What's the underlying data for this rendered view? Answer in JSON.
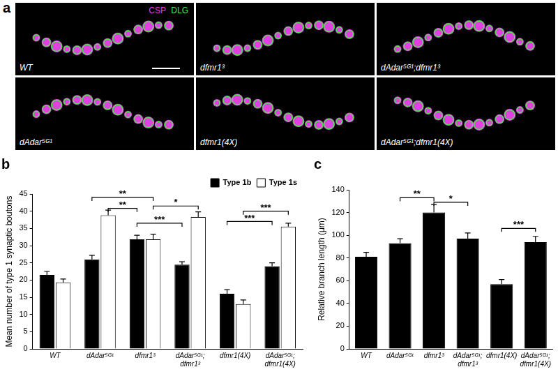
{
  "image_panel": {
    "label": "a",
    "stains": [
      {
        "name": "CSP",
        "color": "#e040e0"
      },
      {
        "name": "DLG",
        "color": "#50e050"
      }
    ],
    "images": [
      "WT",
      "dfmr1³",
      "dAdar⁵ᴳ¹;dfmr1³",
      "dAdar⁵ᴳ¹",
      "dfmr1(4X)",
      "dAdar⁵ᴳ¹;dfmr1(4X)"
    ]
  },
  "chart_data": [
    {
      "type": "bar",
      "title": "b",
      "categories": [
        "WT",
        "dAdar⁵ᴳ¹",
        "dfmr1³",
        [
          "dAdar⁵ᴳ¹;",
          "dfmr1³"
        ],
        "dfmr1(4X)",
        [
          "dAdar⁵ᴳ¹;",
          "dfmr1(4X)"
        ]
      ],
      "y_label": "Mean number of type 1 synaptic boutons",
      "ylim": [
        0,
        45
      ],
      "yticks": [
        0,
        5,
        10,
        15,
        20,
        25,
        30,
        35,
        40,
        45
      ],
      "grid": false,
      "legend": "upper right",
      "series": [
        {
          "name": "Type 1b",
          "color": "#000000",
          "values": [
            21.5,
            26,
            31.8,
            24.5,
            16,
            24
          ],
          "errors": [
            1,
            1.2,
            1.2,
            0.8,
            1.2,
            1
          ]
        },
        {
          "name": "Type 1s",
          "color": "#ffffff",
          "values": [
            19.3,
            38.8,
            31.8,
            38.3,
            13,
            35.5
          ],
          "errors": [
            1,
            1.5,
            1.5,
            1.5,
            1.2,
            1
          ]
        }
      ],
      "annotations": [
        {
          "text": "**",
          "from": [
            1,
            0
          ],
          "to": [
            2,
            1
          ],
          "y": 44
        },
        {
          "text": "**",
          "from": [
            1,
            1
          ],
          "to": [
            2,
            0
          ],
          "y": 40.8
        },
        {
          "text": "*",
          "from": [
            2,
            1
          ],
          "to": [
            3,
            1
          ],
          "y": 41.5
        },
        {
          "text": "***",
          "from": [
            2,
            0
          ],
          "to": [
            3,
            0
          ],
          "y": 36.5
        },
        {
          "text": "***",
          "from": [
            4,
            1
          ],
          "to": [
            5,
            1
          ],
          "y": 40
        },
        {
          "text": "***",
          "from": [
            4,
            0
          ],
          "to": [
            5,
            0
          ],
          "y": 37
        }
      ]
    },
    {
      "type": "bar",
      "title": "c",
      "categories": [
        "WT",
        "dAdar⁵ᴳ¹",
        "dfmr1³",
        [
          "dAdar⁵ᴳ¹;",
          "dfmr1³"
        ],
        "dfmr1(4X)",
        [
          "dAdar⁵ᴳ¹;",
          "dfmr1(4X)"
        ]
      ],
      "y_label": "Relative branch length (μm)",
      "ylim": [
        0,
        140
      ],
      "yticks": [
        0,
        20,
        40,
        60,
        80,
        100,
        120,
        140
      ],
      "grid": false,
      "color": "#000000",
      "values": [
        81,
        93,
        120,
        97,
        57,
        94
      ],
      "errors": [
        4,
        4,
        7,
        5,
        4,
        5
      ],
      "annotations": [
        {
          "text": "**",
          "from": [
            1,
            0
          ],
          "to": [
            2,
            0
          ],
          "y": 133
        },
        {
          "text": "*",
          "from": [
            2,
            0
          ],
          "to": [
            3,
            0
          ],
          "y": 129
        },
        {
          "text": "***",
          "from": [
            4,
            0
          ],
          "to": [
            5,
            0
          ],
          "y": 106
        }
      ]
    }
  ]
}
